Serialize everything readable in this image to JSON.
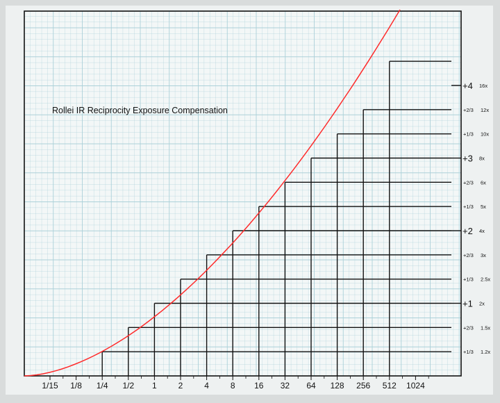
{
  "chart_data": {
    "type": "line",
    "title": "Rollei IR Reciprocity Exposure Compensation",
    "xlabel": "",
    "ylabel": "",
    "x_scale": "log2",
    "x_ticks": [
      "1/15",
      "1/8",
      "1/4",
      "1/2",
      "1",
      "2",
      "4",
      "8",
      "16",
      "32",
      "64",
      "128",
      "256",
      "512",
      "1024"
    ],
    "y_ticks": [
      {
        "stop": "+1/3",
        "factor": "1.2x",
        "major": false
      },
      {
        "stop": "+2/3",
        "factor": "1.5x",
        "major": false
      },
      {
        "stop": "+1",
        "factor": "2x",
        "major": true
      },
      {
        "stop": "+1/3",
        "factor": "2.5x",
        "major": false
      },
      {
        "stop": "+2/3",
        "factor": "3x",
        "major": false
      },
      {
        "stop": "+2",
        "factor": "4x",
        "major": true
      },
      {
        "stop": "+1/3",
        "factor": "5x",
        "major": false
      },
      {
        "stop": "+2/3",
        "factor": "6x",
        "major": false
      },
      {
        "stop": "+3",
        "factor": "8x",
        "major": true
      },
      {
        "stop": "+1/3",
        "factor": "10x",
        "major": false
      },
      {
        "stop": "+2/3",
        "factor": "12x",
        "major": false
      },
      {
        "stop": "+4",
        "factor": "16x",
        "major": true
      }
    ],
    "steps": [
      {
        "x": "1/4",
        "y": 0.333
      },
      {
        "x": "1/2",
        "y": 0.667
      },
      {
        "x": "1",
        "y": 1
      },
      {
        "x": "2",
        "y": 1.333
      },
      {
        "x": "4",
        "y": 1.667
      },
      {
        "x": "8",
        "y": 2
      },
      {
        "x": "16",
        "y": 2.333
      },
      {
        "x": "32",
        "y": 2.667
      },
      {
        "x": "64",
        "y": 3
      },
      {
        "x": "128",
        "y": 3.333
      },
      {
        "x": "256",
        "y": 3.667
      },
      {
        "x": "512",
        "y": 4.333
      }
    ],
    "curve_color": "#ff2a2a",
    "step_color": "#111111",
    "grid": true,
    "grid_color": "#a9cfd8"
  }
}
